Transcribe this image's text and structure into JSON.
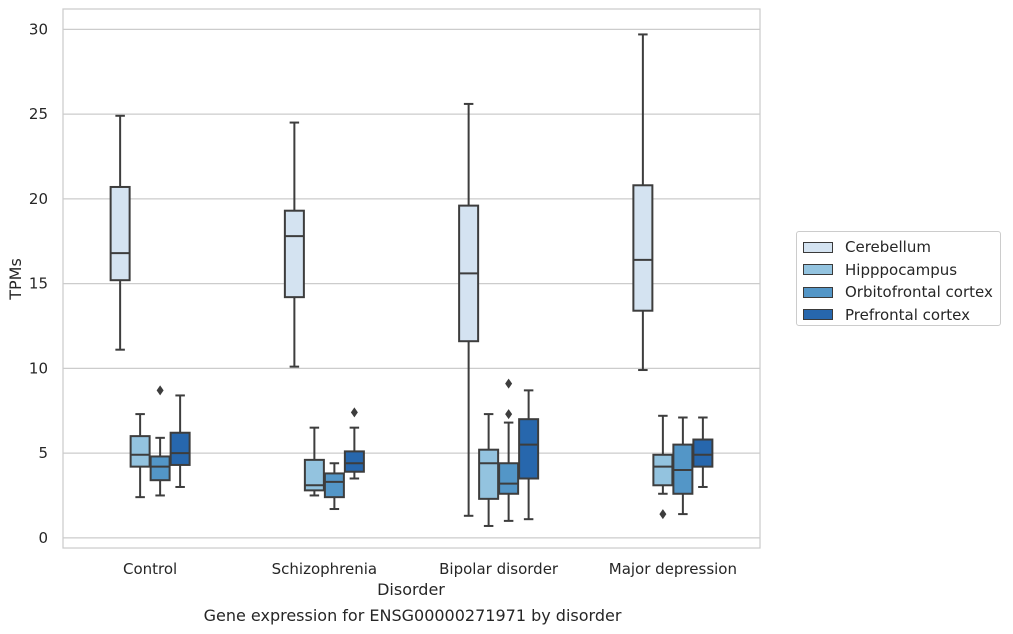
{
  "caption": "Gene expression for ENSG00000271971 by disorder",
  "chart_data": {
    "type": "boxplot",
    "xlabel": "Disorder",
    "ylabel": "TPMs",
    "ylim": [
      -0.6,
      31.2
    ],
    "yticks": [
      0,
      5,
      10,
      15,
      20,
      25,
      30
    ],
    "grid": "horizontal",
    "legend_position": "right",
    "categories": [
      "Control",
      "Schizophrenia",
      "Bipolar disorder",
      "Major depression"
    ],
    "series": [
      {
        "name": "Cerebellum",
        "color": "#d4e3f1",
        "boxes": [
          {
            "whislo": 11.1,
            "q1": 15.2,
            "med": 16.8,
            "q3": 20.7,
            "whishi": 24.9,
            "fliers": []
          },
          {
            "whislo": 10.1,
            "q1": 14.2,
            "med": 17.8,
            "q3": 19.3,
            "whishi": 24.5,
            "fliers": []
          },
          {
            "whislo": 1.3,
            "q1": 11.6,
            "med": 15.6,
            "q3": 19.6,
            "whishi": 25.6,
            "fliers": []
          },
          {
            "whislo": 9.9,
            "q1": 13.4,
            "med": 16.4,
            "q3": 20.8,
            "whishi": 29.7,
            "fliers": []
          }
        ]
      },
      {
        "name": "Hipppocampus",
        "color": "#93c3df",
        "boxes": [
          {
            "whislo": 2.4,
            "q1": 4.2,
            "med": 4.9,
            "q3": 6.0,
            "whishi": 7.3,
            "fliers": []
          },
          {
            "whislo": 2.5,
            "q1": 2.8,
            "med": 3.1,
            "q3": 4.6,
            "whishi": 6.5,
            "fliers": []
          },
          {
            "whislo": 0.7,
            "q1": 2.3,
            "med": 4.4,
            "q3": 5.2,
            "whishi": 7.3,
            "fliers": []
          },
          {
            "whislo": 2.6,
            "q1": 3.1,
            "med": 4.2,
            "q3": 4.9,
            "whishi": 7.2,
            "fliers": [
              1.4
            ]
          }
        ]
      },
      {
        "name": "Orbitofrontal cortex",
        "color": "#5396c7",
        "boxes": [
          {
            "whislo": 2.5,
            "q1": 3.4,
            "med": 4.2,
            "q3": 4.8,
            "whishi": 5.9,
            "fliers": [
              8.7
            ]
          },
          {
            "whislo": 1.7,
            "q1": 2.4,
            "med": 3.3,
            "q3": 3.8,
            "whishi": 4.4,
            "fliers": []
          },
          {
            "whislo": 1.0,
            "q1": 2.6,
            "med": 3.2,
            "q3": 4.4,
            "whishi": 6.8,
            "fliers": [
              7.3,
              9.1
            ]
          },
          {
            "whislo": 1.4,
            "q1": 2.6,
            "med": 4.0,
            "q3": 5.5,
            "whishi": 7.1,
            "fliers": []
          }
        ]
      },
      {
        "name": "Prefrontal cortex",
        "color": "#2767ad",
        "boxes": [
          {
            "whislo": 3.0,
            "q1": 4.3,
            "med": 5.0,
            "q3": 6.2,
            "whishi": 8.4,
            "fliers": []
          },
          {
            "whislo": 3.5,
            "q1": 3.9,
            "med": 4.4,
            "q3": 5.1,
            "whishi": 6.5,
            "fliers": [
              7.4
            ]
          },
          {
            "whislo": 1.1,
            "q1": 3.5,
            "med": 5.5,
            "q3": 7.0,
            "whishi": 8.7,
            "fliers": []
          },
          {
            "whislo": 3.0,
            "q1": 4.2,
            "med": 4.9,
            "q3": 5.8,
            "whishi": 7.1,
            "fliers": []
          }
        ]
      }
    ]
  }
}
